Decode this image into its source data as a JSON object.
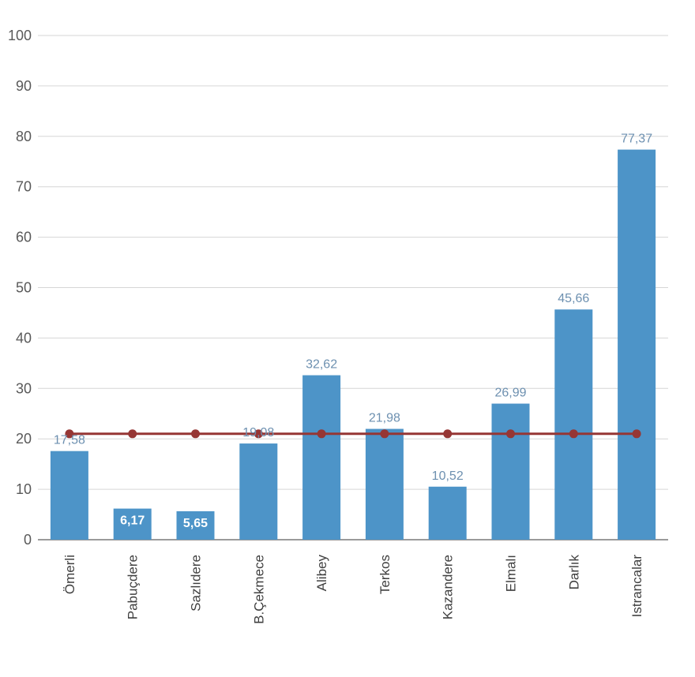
{
  "chart_data": {
    "type": "bar",
    "categories": [
      "Ömerli",
      "Pabuçdere",
      "Sazlıdere",
      "B.Çekmece",
      "Alibey",
      "Terkos",
      "Kazandere",
      "Elmalı",
      "Darlık",
      "Istrancalar"
    ],
    "series": [
      {
        "name": "dam-values",
        "type": "bar",
        "values": [
          17.58,
          6.17,
          5.65,
          19.08,
          32.62,
          21.98,
          10.52,
          26.99,
          45.66,
          77.37
        ],
        "labels": [
          "17,58",
          "6,17",
          "5,65",
          "19,08",
          "32,62",
          "21,98",
          "10,52",
          "26,99",
          "45,66",
          "77,37"
        ]
      },
      {
        "name": "reference-line",
        "type": "line",
        "values": [
          21,
          21,
          21,
          21,
          21,
          21,
          21,
          21,
          21,
          21
        ]
      }
    ],
    "title": "",
    "xlabel": "",
    "ylabel": "",
    "ylim": [
      0,
      100
    ],
    "ytick_step": 10,
    "ytick_labels": [
      "0",
      "10",
      "20",
      "30",
      "40",
      "50",
      "60",
      "70",
      "80",
      "90",
      "100"
    ],
    "grid": true,
    "legend": "none",
    "colors": {
      "bar": "#4d94c8",
      "line": "#963634",
      "point": "#963634",
      "value_label": "#6d90b0",
      "inside_value_label": "#ffffff",
      "axis_text": "#595959",
      "category_text": "#3f3f3f",
      "grid": "#d6d6d6",
      "axis_line": "#9a9a9a"
    },
    "inside_label_threshold": 8
  }
}
